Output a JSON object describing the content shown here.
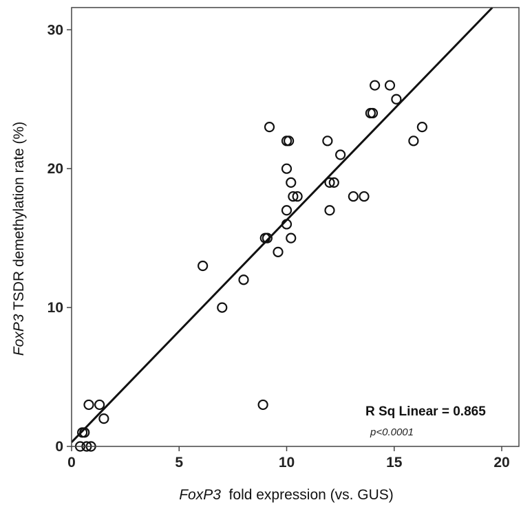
{
  "chart_data": {
    "type": "scatter",
    "xlabel_italic": "FoxP3",
    "xlabel_rest": "  fold expression (vs. GUS)",
    "ylabel_italic": "FoxP3",
    "ylabel_rest": " TSDR demethylation rate (%)",
    "xlim": [
      0,
      20.8
    ],
    "ylim": [
      0,
      31.6
    ],
    "xticks": [
      0,
      5,
      10,
      15,
      20
    ],
    "yticks": [
      0,
      10,
      20,
      30
    ],
    "grid": false,
    "points": [
      {
        "x": 0.4,
        "y": 0
      },
      {
        "x": 0.5,
        "y": 1
      },
      {
        "x": 0.6,
        "y": 1
      },
      {
        "x": 0.7,
        "y": 0
      },
      {
        "x": 0.8,
        "y": 3
      },
      {
        "x": 0.9,
        "y": 0
      },
      {
        "x": 1.3,
        "y": 3
      },
      {
        "x": 1.5,
        "y": 2
      },
      {
        "x": 6.1,
        "y": 13
      },
      {
        "x": 7.0,
        "y": 10
      },
      {
        "x": 8.0,
        "y": 12
      },
      {
        "x": 8.9,
        "y": 3
      },
      {
        "x": 9.0,
        "y": 15
      },
      {
        "x": 9.1,
        "y": 15
      },
      {
        "x": 9.2,
        "y": 23
      },
      {
        "x": 9.6,
        "y": 14
      },
      {
        "x": 10.0,
        "y": 22
      },
      {
        "x": 10.0,
        "y": 20
      },
      {
        "x": 10.0,
        "y": 17
      },
      {
        "x": 10.0,
        "y": 16
      },
      {
        "x": 10.1,
        "y": 22
      },
      {
        "x": 10.2,
        "y": 19
      },
      {
        "x": 10.2,
        "y": 15
      },
      {
        "x": 10.3,
        "y": 18
      },
      {
        "x": 10.5,
        "y": 18
      },
      {
        "x": 11.9,
        "y": 22
      },
      {
        "x": 12.0,
        "y": 19
      },
      {
        "x": 12.0,
        "y": 17
      },
      {
        "x": 12.2,
        "y": 19
      },
      {
        "x": 12.5,
        "y": 21
      },
      {
        "x": 13.1,
        "y": 18
      },
      {
        "x": 13.6,
        "y": 18
      },
      {
        "x": 13.9,
        "y": 24
      },
      {
        "x": 14.0,
        "y": 24
      },
      {
        "x": 14.1,
        "y": 26
      },
      {
        "x": 14.8,
        "y": 26
      },
      {
        "x": 15.1,
        "y": 25
      },
      {
        "x": 15.9,
        "y": 22
      },
      {
        "x": 16.3,
        "y": 23
      }
    ],
    "fit_line": {
      "intercept": 0.3,
      "slope": 1.6
    },
    "annotation": "R Sq Linear = 0.865",
    "annotation_sub": "p<0.0001"
  }
}
